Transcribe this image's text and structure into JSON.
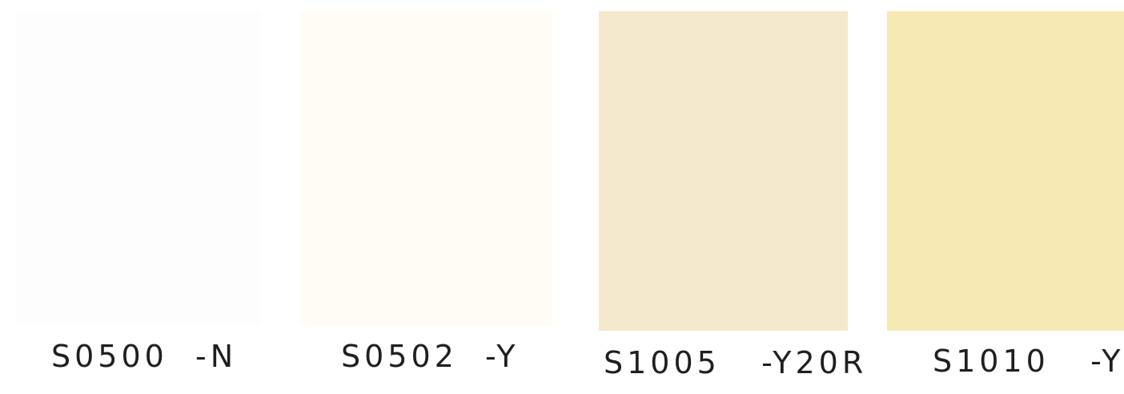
{
  "swatches": [
    {
      "code": "S0500  -N",
      "color": "#fdfdfd"
    },
    {
      "code": "S0502  -Y",
      "color": "#fefcf4"
    },
    {
      "code": "S1005   -Y20R",
      "color": "#f4e9cd"
    },
    {
      "code": "S1010   -Y",
      "color": "#f7e9b4"
    }
  ]
}
